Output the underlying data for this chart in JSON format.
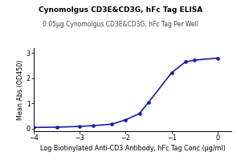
{
  "title": "Cynomolgus CD3E&CD3G, hFc Tag ELISA",
  "subtitle": "0.05μg Cynomolgus CD3E&CD3G, hFc Tag Per Well",
  "xlabel": "Log Biotinylated Anti-CD3 Antibody, hFc Tag Conc.(μg/ml)",
  "ylabel": "Mean Abs.(OD450)",
  "xlim": [
    -4.0,
    0.3
  ],
  "ylim": [
    -0.1,
    3.2
  ],
  "xticks": [
    -4,
    -3,
    -2,
    -1,
    0
  ],
  "yticks": [
    0,
    1,
    2,
    3
  ],
  "data_x": [
    -4.0,
    -3.5,
    -3.0,
    -2.7,
    -2.3,
    -2.0,
    -1.7,
    -1.5,
    -1.0,
    -0.7,
    -0.5,
    0.0
  ],
  "data_y": [
    0.05,
    0.06,
    0.09,
    0.12,
    0.18,
    0.35,
    0.6,
    1.05,
    2.22,
    2.65,
    2.72,
    2.8
  ],
  "line_color": "#1c1cb0",
  "marker_color": "#1c1cb0",
  "bg_color": "#ffffff",
  "title_fontsize": 6.5,
  "subtitle_fontsize": 5.5,
  "axis_label_fontsize": 5.8,
  "tick_fontsize": 5.8,
  "marker_size": 3.0,
  "line_width": 1.2
}
